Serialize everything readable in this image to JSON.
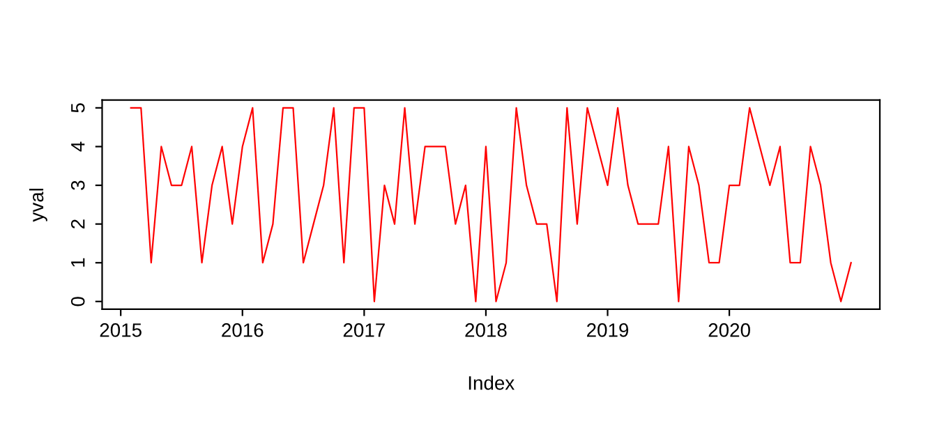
{
  "chart_data": {
    "type": "line",
    "xlabel": "Index",
    "ylabel": "yval",
    "x": [
      "2015-02",
      "2015-03",
      "2015-04",
      "2015-05",
      "2015-06",
      "2015-07",
      "2015-08",
      "2015-09",
      "2015-10",
      "2015-11",
      "2015-12",
      "2016-01",
      "2016-02",
      "2016-03",
      "2016-04",
      "2016-05",
      "2016-06",
      "2016-07",
      "2016-08",
      "2016-09",
      "2016-10",
      "2016-11",
      "2016-12",
      "2017-01",
      "2017-02",
      "2017-03",
      "2017-04",
      "2017-05",
      "2017-06",
      "2017-07",
      "2017-08",
      "2017-09",
      "2017-10",
      "2017-11",
      "2017-12",
      "2018-01",
      "2018-02",
      "2018-03",
      "2018-04",
      "2018-05",
      "2018-06",
      "2018-07",
      "2018-08",
      "2018-09",
      "2018-10",
      "2018-11",
      "2018-12",
      "2019-01",
      "2019-02",
      "2019-03",
      "2019-04",
      "2019-05",
      "2019-06",
      "2019-07",
      "2019-08",
      "2019-09",
      "2019-10",
      "2019-11",
      "2019-12",
      "2020-01",
      "2020-02",
      "2020-03",
      "2020-04",
      "2020-05",
      "2020-06",
      "2020-07",
      "2020-08",
      "2020-09",
      "2020-10",
      "2020-11",
      "2020-12",
      "2021-01"
    ],
    "series": [
      {
        "color": "#ff0000",
        "values": [
          5,
          5,
          1,
          4,
          3,
          3,
          4,
          1,
          3,
          4,
          2,
          4,
          5,
          1,
          2,
          5,
          5,
          1,
          2,
          3,
          5,
          1,
          5,
          5,
          0,
          3,
          2,
          5,
          2,
          4,
          4,
          4,
          2,
          3,
          0,
          4,
          0,
          1,
          5,
          3,
          2,
          2,
          0,
          5,
          2,
          5,
          4,
          3,
          5,
          3,
          2,
          2,
          2,
          4,
          0,
          4,
          3,
          1,
          1,
          3,
          3,
          5,
          4,
          3,
          4,
          1,
          1,
          4,
          3,
          1,
          0,
          1
        ]
      }
    ],
    "xlim": [
      "2014-11-06",
      "2021-03-27"
    ],
    "xticks": [
      "2015",
      "2016",
      "2017",
      "2018",
      "2019",
      "2020"
    ],
    "ylim": [
      -0.2,
      5.2
    ],
    "yticks": [
      0,
      1,
      2,
      3,
      4,
      5
    ],
    "grid": false,
    "marker": "none",
    "line_style": "solid"
  }
}
